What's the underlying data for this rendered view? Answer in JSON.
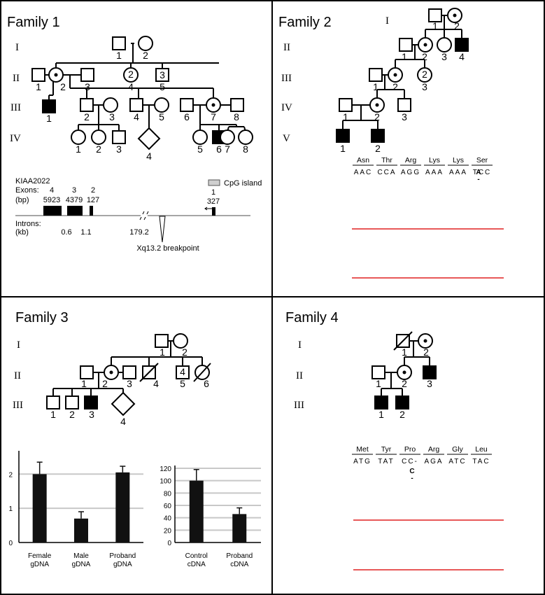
{
  "panels": {
    "family1": {
      "title": "Family 1",
      "generations": [
        "I",
        "II",
        "III",
        "IV"
      ],
      "gene": {
        "name": "KIAA2022",
        "exons_label": "Exons:",
        "bp_label": "(bp)",
        "exons": [
          {
            "number": "4",
            "size": "5923"
          },
          {
            "number": "3",
            "size": "4379"
          },
          {
            "number": "2",
            "size": "127"
          },
          {
            "number": "1",
            "size": "327"
          }
        ],
        "cpg_label": "CpG island",
        "introns_label": "Introns:",
        "kb_label": "(kb)",
        "introns": [
          "0.6",
          "1.1",
          "179.2"
        ],
        "breakpoint_label": "Xq13.2 breakpoint"
      }
    },
    "family2": {
      "title": "Family 2",
      "generations": [
        "I",
        "II",
        "III",
        "IV",
        "V"
      ],
      "amino_acids": [
        "Asn",
        "Thr",
        "Arg",
        "Lys",
        "Lys",
        "Ser"
      ],
      "codons": [
        "AAC",
        "CCA",
        "AGG",
        "AAA",
        "AAA",
        "TCC"
      ],
      "insertion": "A",
      "insertion_mark": "-"
    },
    "family3": {
      "title": "Family 3",
      "generations": [
        "I",
        "II",
        "III"
      ],
      "chart_left": {
        "yticks": [
          "0",
          "1",
          "2"
        ],
        "categories": [
          [
            "Female",
            "gDNA"
          ],
          [
            "Male",
            "gDNA"
          ],
          [
            "Proband",
            "gDNA"
          ]
        ]
      },
      "chart_right": {
        "yticks": [
          "0",
          "20",
          "40",
          "60",
          "80",
          "100",
          "120"
        ],
        "categories": [
          [
            "Control",
            "cDNA"
          ],
          [
            "Proband",
            "cDNA"
          ]
        ]
      }
    },
    "family4": {
      "title": "Family 4",
      "generations": [
        "I",
        "II",
        "III"
      ],
      "amino_acids": [
        "Met",
        "Tyr",
        "Pro",
        "Arg",
        "Gly",
        "Leu"
      ],
      "codons": [
        "ATG",
        "TAT",
        "CC-",
        "AGA",
        "ATC",
        "TAC"
      ],
      "deletion": "C",
      "deletion_mark": "-"
    }
  },
  "chart_data": [
    {
      "type": "bar",
      "categories": [
        "Female gDNA",
        "Male gDNA",
        "Proband gDNA"
      ],
      "values": [
        2.0,
        0.7,
        2.05
      ],
      "errors": [
        0.35,
        0.2,
        0.18
      ],
      "ylim": [
        0,
        2.6
      ],
      "yticks": [
        0,
        1,
        2
      ],
      "grid": true
    },
    {
      "type": "bar",
      "categories": [
        "Control cDNA",
        "Proband cDNA"
      ],
      "values": [
        100,
        46
      ],
      "errors": [
        18,
        10
      ],
      "ylim": [
        0,
        120
      ],
      "yticks": [
        0,
        20,
        40,
        60,
        80,
        100,
        120
      ],
      "grid": true
    }
  ],
  "colors": {
    "A": "#2e9a3c",
    "C": "#2b3fc8",
    "G": "#111111",
    "T": "#e02020"
  }
}
